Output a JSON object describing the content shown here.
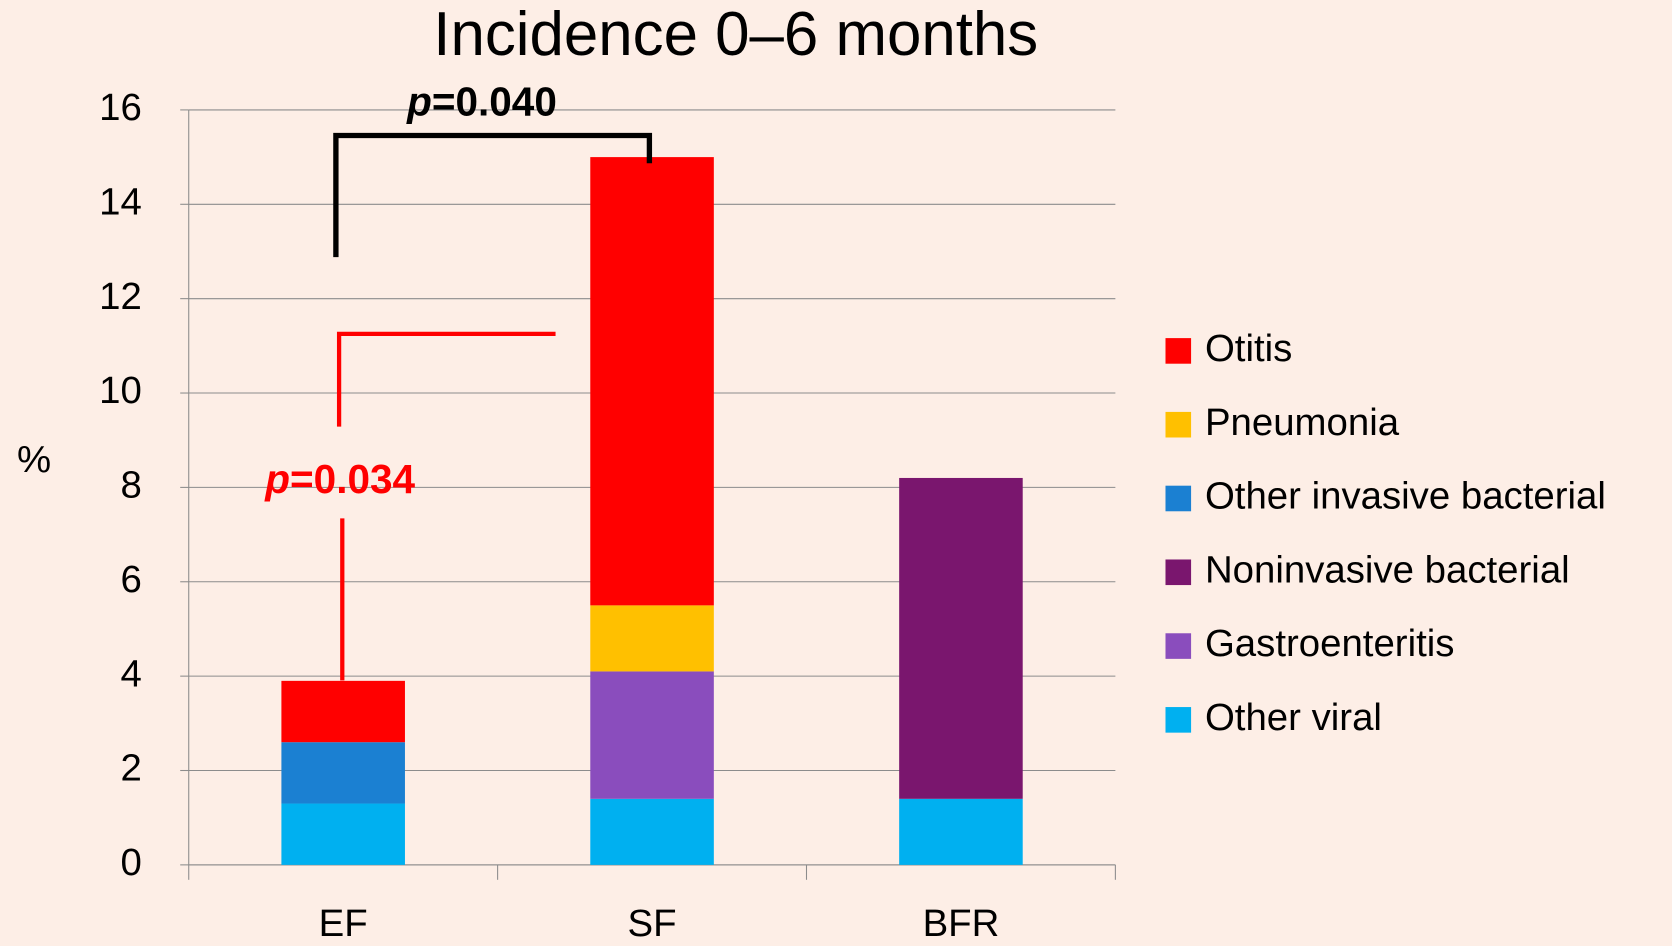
{
  "chart_data": {
    "type": "stacked_bar",
    "title": "Incidence 0–6 months",
    "y_label": "%",
    "categories": [
      "EF",
      "SF",
      "BFR"
    ],
    "series": [
      {
        "name": "Otitis",
        "color": "#ff0000",
        "values": [
          1.3,
          9.5,
          0
        ]
      },
      {
        "name": "Pneumonia",
        "color": "#ffc000",
        "values": [
          0,
          1.4,
          0
        ]
      },
      {
        "name": "Other invasive bacterial",
        "color": "#1b80d2",
        "values": [
          1.3,
          0,
          0
        ]
      },
      {
        "name": "Noninvasive bacterial",
        "color": "#7a166e",
        "values": [
          0,
          0,
          6.8
        ]
      },
      {
        "name": "Gastroenteritis",
        "color": "#8a4dbd",
        "values": [
          0,
          2.7,
          0
        ]
      },
      {
        "name": "Other viral",
        "color": "#00b0f0",
        "values": [
          1.3,
          1.4,
          1.4
        ]
      }
    ],
    "ylim": [
      0,
      16
    ],
    "yticks": [
      0,
      2,
      4,
      6,
      8,
      10,
      12,
      14,
      16
    ],
    "grid": true,
    "legend": "right",
    "annotations": [
      {
        "parts": [
          "p",
          "=0.040"
        ],
        "color": "#000000"
      },
      {
        "parts": [
          "p",
          "=0.034"
        ],
        "color": "#ff0000"
      }
    ]
  }
}
